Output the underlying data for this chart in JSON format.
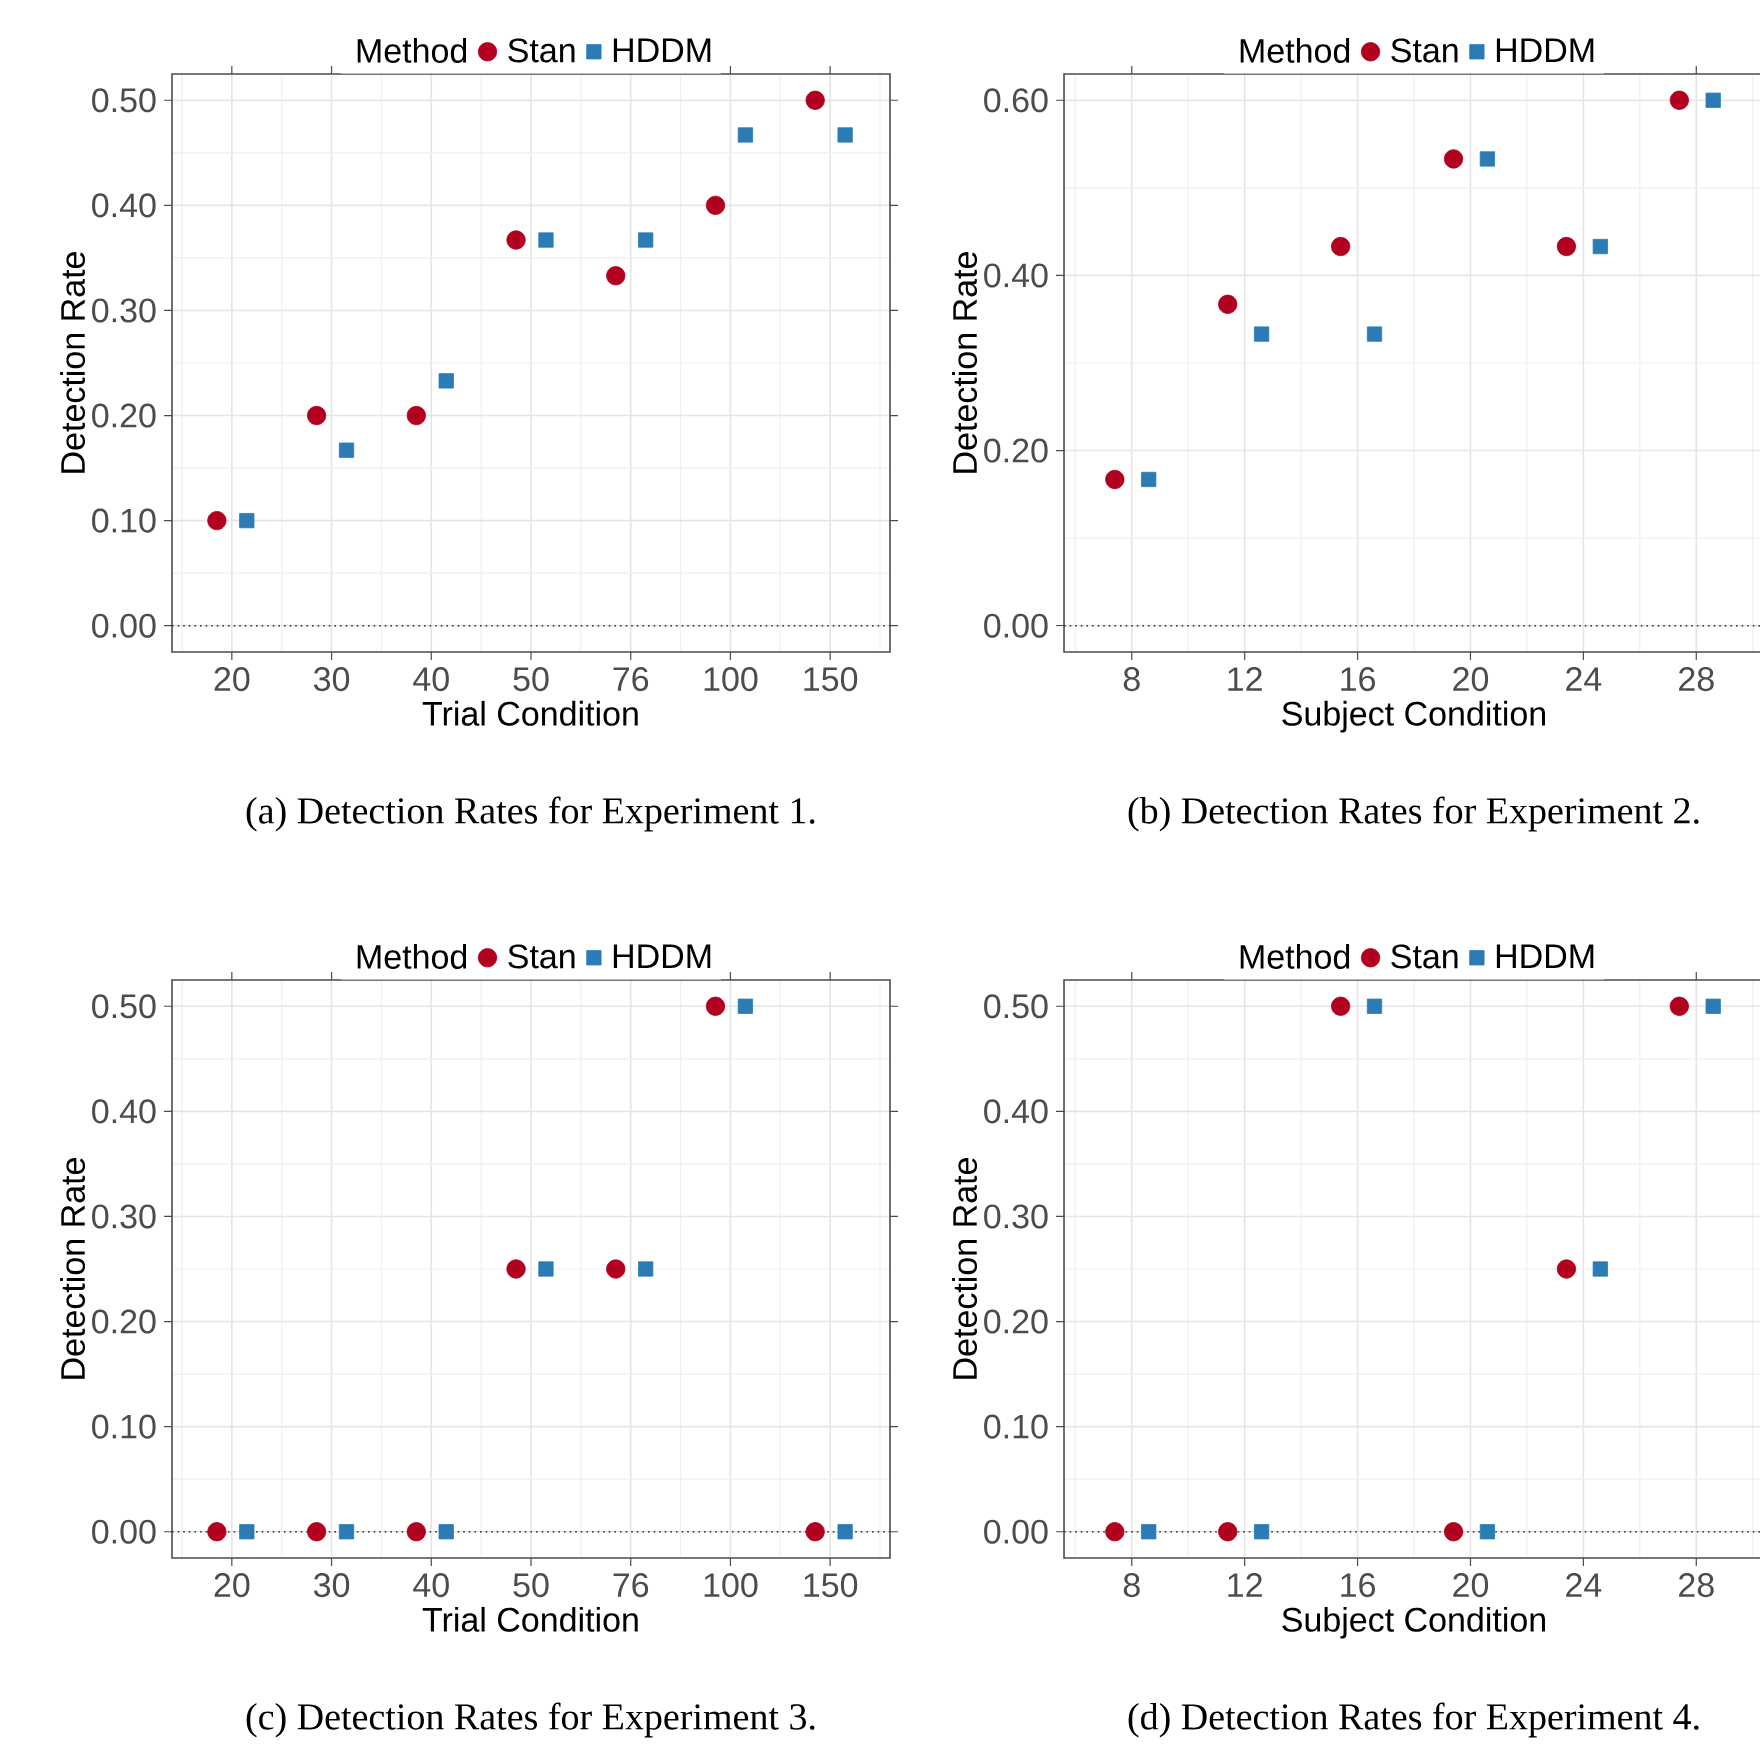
{
  "chart_data": [
    {
      "type": "scatter",
      "title": "(a)  Detection Rates for Experiment 1.",
      "xlabel": "Trial Condition",
      "ylabel": "Detection Rate",
      "legend_title": "Method",
      "legend": "top",
      "grid": true,
      "categories": [
        "20",
        "30",
        "40",
        "50",
        "76",
        "100",
        "150"
      ],
      "series": [
        {
          "name": "Stan",
          "color": "#b2001f",
          "marker": "circle",
          "values": [
            0.1,
            0.2,
            0.2,
            0.367,
            0.333,
            0.4,
            0.5
          ]
        },
        {
          "name": "HDDM",
          "color": "#2b7bb5",
          "marker": "square",
          "values": [
            0.1,
            0.167,
            0.233,
            0.367,
            0.367,
            0.467,
            0.467
          ]
        }
      ],
      "ylim": [
        -0.025,
        0.525
      ],
      "yticks": [
        {
          "value": 0,
          "label": "0.00"
        },
        {
          "value": 0.1,
          "label": "0.10"
        },
        {
          "value": 0.2,
          "label": "0.20"
        },
        {
          "value": 0.3,
          "label": "0.30"
        },
        {
          "value": 0.4,
          "label": "0.40"
        },
        {
          "value": 0.5,
          "label": "0.50"
        }
      ],
      "ref_lines": [
        {
          "axis": "y",
          "value": 0,
          "line_style": "dotted",
          "color": "#333333"
        }
      ]
    },
    {
      "type": "scatter",
      "title": "(b)  Detection Rates for Experiment 2.",
      "xlabel": "Subject Condition",
      "ylabel": "Detection Rate",
      "legend_title": "Method",
      "legend": "top",
      "grid": true,
      "categories": [
        "8",
        "12",
        "16",
        "20",
        "24",
        "28"
      ],
      "series": [
        {
          "name": "Stan",
          "color": "#b2001f",
          "marker": "circle",
          "values": [
            0.167,
            0.367,
            0.433,
            0.533,
            0.433,
            0.6
          ]
        },
        {
          "name": "HDDM",
          "color": "#2b7bb5",
          "marker": "square",
          "values": [
            0.167,
            0.333,
            0.333,
            0.533,
            0.433,
            0.6
          ]
        }
      ],
      "ylim": [
        -0.03,
        0.63
      ],
      "yticks": [
        {
          "value": 0,
          "label": "0.00"
        },
        {
          "value": 0.2,
          "label": "0.20"
        },
        {
          "value": 0.4,
          "label": "0.40"
        },
        {
          "value": 0.6,
          "label": "0.60"
        }
      ],
      "ref_lines": [
        {
          "axis": "y",
          "value": 0,
          "line_style": "dotted",
          "color": "#333333"
        }
      ]
    },
    {
      "type": "scatter",
      "title": "(c)  Detection Rates for Experiment 3.",
      "xlabel": "Trial Condition",
      "ylabel": "Detection Rate",
      "legend_title": "Method",
      "legend": "top",
      "grid": true,
      "categories": [
        "20",
        "30",
        "40",
        "50",
        "76",
        "100",
        "150"
      ],
      "series": [
        {
          "name": "Stan",
          "color": "#b2001f",
          "marker": "circle",
          "values": [
            0,
            0,
            0,
            0.25,
            0.25,
            0.5,
            0
          ]
        },
        {
          "name": "HDDM",
          "color": "#2b7bb5",
          "marker": "square",
          "values": [
            0,
            0,
            0,
            0.25,
            0.25,
            0.5,
            0
          ]
        }
      ],
      "ylim": [
        -0.025,
        0.525
      ],
      "yticks": [
        {
          "value": 0,
          "label": "0.00"
        },
        {
          "value": 0.1,
          "label": "0.10"
        },
        {
          "value": 0.2,
          "label": "0.20"
        },
        {
          "value": 0.3,
          "label": "0.30"
        },
        {
          "value": 0.4,
          "label": "0.40"
        },
        {
          "value": 0.5,
          "label": "0.50"
        }
      ],
      "ref_lines": [
        {
          "axis": "y",
          "value": 0,
          "line_style": "dotted",
          "color": "#333333"
        }
      ]
    },
    {
      "type": "scatter",
      "title": "(d)  Detection Rates for Experiment 4.",
      "xlabel": "Subject Condition",
      "ylabel": "Detection Rate",
      "legend_title": "Method",
      "legend": "top",
      "grid": true,
      "categories": [
        "8",
        "12",
        "16",
        "20",
        "24",
        "28"
      ],
      "series": [
        {
          "name": "Stan",
          "color": "#b2001f",
          "marker": "circle",
          "values": [
            0,
            0,
            0.5,
            0,
            0.25,
            0.5
          ]
        },
        {
          "name": "HDDM",
          "color": "#2b7bb5",
          "marker": "square",
          "values": [
            0,
            0,
            0.5,
            0,
            0.25,
            0.5
          ]
        }
      ],
      "ylim": [
        -0.025,
        0.525
      ],
      "yticks": [
        {
          "value": 0,
          "label": "0.00"
        },
        {
          "value": 0.1,
          "label": "0.10"
        },
        {
          "value": 0.2,
          "label": "0.20"
        },
        {
          "value": 0.3,
          "label": "0.30"
        },
        {
          "value": 0.4,
          "label": "0.40"
        },
        {
          "value": 0.5,
          "label": "0.50"
        }
      ],
      "ref_lines": [
        {
          "axis": "y",
          "value": 0,
          "line_style": "dotted",
          "color": "#333333"
        }
      ]
    }
  ]
}
